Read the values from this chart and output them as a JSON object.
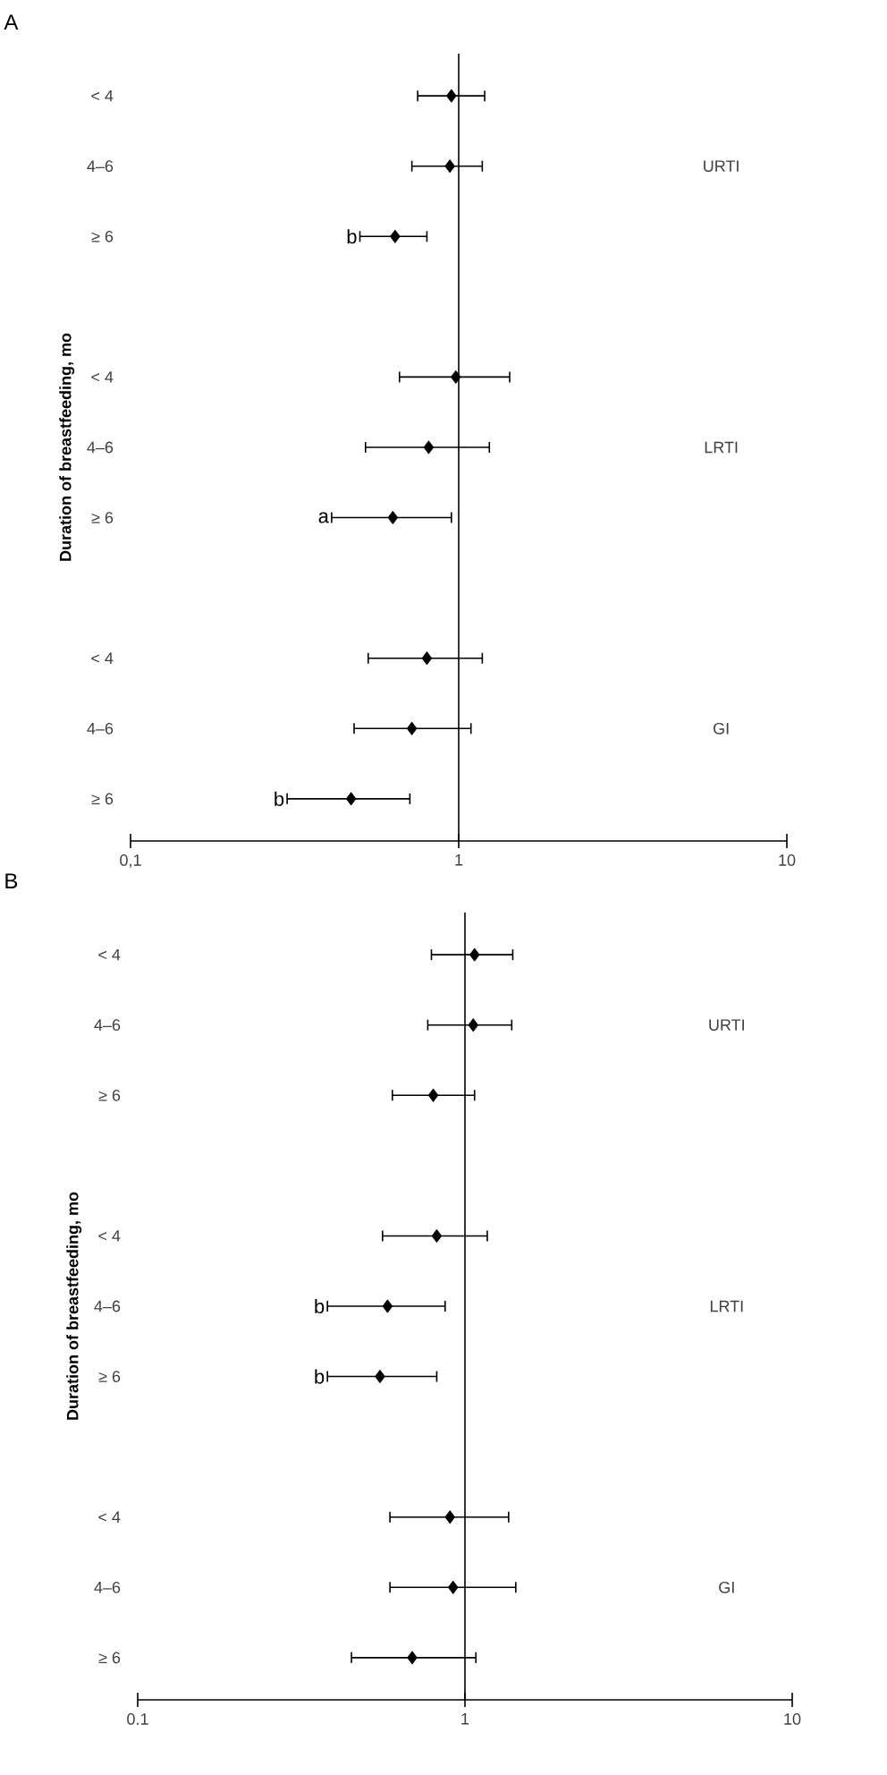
{
  "chart_data": [
    {
      "type": "scatter",
      "title": "A",
      "ylabel": "Duration of breastfeeding, mo",
      "orientation": "horizontal",
      "marker": "diamond",
      "color": "#000000",
      "log": "x",
      "categories": [
        "< 4",
        "4–6",
        "≥ 6",
        null,
        "< 4",
        "4–6",
        "≥ 6",
        null,
        "< 4",
        "4–6",
        "≥ 6"
      ],
      "values": [
        0.95,
        0.94,
        0.64,
        null,
        0.98,
        0.81,
        0.63,
        null,
        0.8,
        0.72,
        0.47
      ],
      "errors": [
        [
          0.75,
          1.2
        ],
        [
          0.72,
          1.18
        ],
        [
          0.5,
          0.8
        ],
        null,
        [
          0.66,
          1.43
        ],
        [
          0.52,
          1.24
        ],
        [
          0.41,
          0.95
        ],
        null,
        [
          0.53,
          1.18
        ],
        [
          0.48,
          1.09
        ],
        [
          0.3,
          0.71
        ]
      ],
      "value_labels": [
        null,
        null,
        "b",
        null,
        null,
        null,
        "a",
        null,
        null,
        null,
        "b"
      ],
      "annotations": [
        "URTI",
        "LRTI",
        "GI"
      ],
      "xlim": [
        0.1,
        10
      ],
      "xticks": [
        {
          "value": 0.1,
          "label": "0,1"
        },
        1,
        10
      ],
      "ref_lines": [
        {
          "axis": "x",
          "value": 1
        }
      ],
      "grid": false
    },
    {
      "type": "scatter",
      "title": "B",
      "ylabel": "Duration of breastfeeding, mo",
      "orientation": "horizontal",
      "marker": "diamond",
      "color": "#000000",
      "log": "x",
      "categories": [
        "< 4",
        "4–6",
        "≥ 6",
        null,
        "< 4",
        "4–6",
        "≥ 6",
        null,
        "< 4",
        "4–6",
        "≥ 6"
      ],
      "values": [
        1.07,
        1.06,
        0.8,
        null,
        0.82,
        0.58,
        0.55,
        null,
        0.9,
        0.92,
        0.69
      ],
      "errors": [
        [
          0.79,
          1.4
        ],
        [
          0.77,
          1.39
        ],
        [
          0.6,
          1.07
        ],
        null,
        [
          0.56,
          1.17
        ],
        [
          0.38,
          0.87
        ],
        [
          0.38,
          0.82
        ],
        null,
        [
          0.59,
          1.36
        ],
        [
          0.59,
          1.43
        ],
        [
          0.45,
          1.08
        ]
      ],
      "value_labels": [
        null,
        null,
        null,
        null,
        null,
        "b",
        "b",
        null,
        null,
        null,
        null
      ],
      "annotations": [
        "URTI",
        "LRTI",
        "GI"
      ],
      "xlim": [
        0.1,
        10
      ],
      "xticks": [
        0.1,
        1,
        10
      ],
      "ref_lines": [
        {
          "axis": "x",
          "value": 1
        }
      ],
      "grid": false
    }
  ]
}
